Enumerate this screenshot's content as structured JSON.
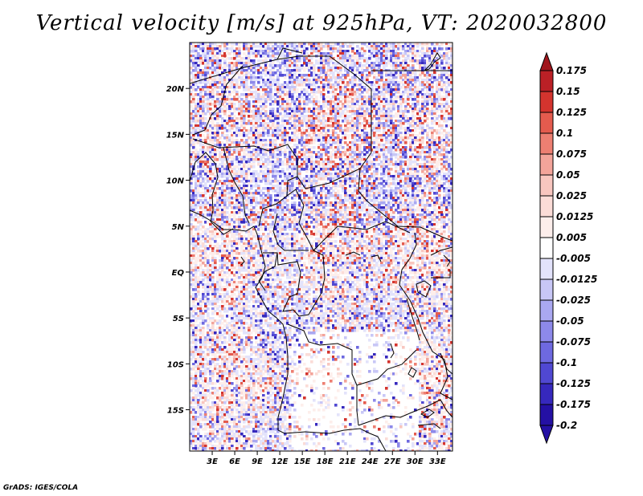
{
  "title": "Vertical velocity [m/s] at 925hPa, VT: 2020032800",
  "credit": "GrADS: IGES/COLA",
  "map": {
    "projection": "lat-lon",
    "lon_range": [
      0,
      35
    ],
    "lat_range": [
      -19.5,
      25
    ],
    "lat_ticks": [
      {
        "value": 20,
        "label": "20N"
      },
      {
        "value": 15,
        "label": "15N"
      },
      {
        "value": 10,
        "label": "10N"
      },
      {
        "value": 5,
        "label": "5N"
      },
      {
        "value": 0,
        "label": "EQ"
      },
      {
        "value": -5,
        "label": "5S"
      },
      {
        "value": -10,
        "label": "10S"
      },
      {
        "value": -15,
        "label": "15S"
      }
    ],
    "lon_ticks": [
      {
        "value": 3,
        "label": "3E"
      },
      {
        "value": 6,
        "label": "6E"
      },
      {
        "value": 9,
        "label": "9E"
      },
      {
        "value": 12,
        "label": "12E"
      },
      {
        "value": 15,
        "label": "15E"
      },
      {
        "value": 18,
        "label": "18E"
      },
      {
        "value": 21,
        "label": "21E"
      },
      {
        "value": 24,
        "label": "24E"
      },
      {
        "value": 27,
        "label": "27E"
      },
      {
        "value": 30,
        "label": "30E"
      },
      {
        "value": 33,
        "label": "33E"
      }
    ]
  },
  "colorbar": {
    "levels": [
      {
        "label": "0.175",
        "color": "#a0151c"
      },
      {
        "label": "0.15",
        "color": "#bb2026"
      },
      {
        "label": "0.125",
        "color": "#d4342e"
      },
      {
        "label": "0.1",
        "color": "#e45b4e"
      },
      {
        "label": "0.075",
        "color": "#ed7f72"
      },
      {
        "label": "0.05",
        "color": "#f3a49a"
      },
      {
        "label": "0.025",
        "color": "#f8c6bf"
      },
      {
        "label": "0.0125",
        "color": "#fbdcd7"
      },
      {
        "label": "0.005",
        "color": "#fdeeeb"
      },
      {
        "label": "-0.005",
        "color": "#ffffff"
      },
      {
        "label": "-0.0125",
        "color": "#e3e3fb"
      },
      {
        "label": "-0.025",
        "color": "#c8c7f6"
      },
      {
        "label": "-0.05",
        "color": "#aaa8f1"
      },
      {
        "label": "-0.075",
        "color": "#8d89ea"
      },
      {
        "label": "-0.1",
        "color": "#6e69e0"
      },
      {
        "label": "-0.125",
        "color": "#5048d2"
      },
      {
        "label": "-0.175",
        "color": "#3628bd"
      },
      {
        "label": "-0.2",
        "color": "#2410a4"
      }
    ],
    "top_color": "#a0151c",
    "bottom_color": "#2410a4"
  }
}
